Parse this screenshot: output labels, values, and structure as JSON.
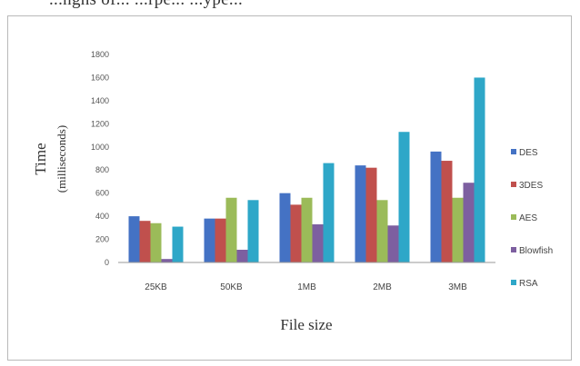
{
  "page": {
    "top_strip_text": "...nghs of... ...rpe... ...ype..."
  },
  "chart_data": {
    "type": "bar",
    "title": "",
    "xlabel": "File size",
    "ylabel": "Time",
    "ylabel_unit": "(milliseconds)",
    "categories": [
      "25KB",
      "50KB",
      "1MB",
      "2MB",
      "3MB"
    ],
    "ylim": [
      0,
      1800
    ],
    "yticks": [
      0,
      200,
      400,
      600,
      800,
      1000,
      1200,
      1400,
      1600,
      1800
    ],
    "grid": false,
    "legend_position": "right",
    "series": [
      {
        "name": "DES",
        "color": "#4472c4",
        "values": [
          400,
          380,
          600,
          840,
          960
        ]
      },
      {
        "name": "3DES",
        "color": "#c0504d",
        "values": [
          360,
          380,
          500,
          820,
          880
        ]
      },
      {
        "name": "AES",
        "color": "#9bbb59",
        "values": [
          340,
          560,
          560,
          540,
          560
        ]
      },
      {
        "name": "Blowfish",
        "color": "#7d5fa0",
        "values": [
          30,
          110,
          330,
          320,
          690
        ]
      },
      {
        "name": "RSA",
        "color": "#2ea7c8",
        "values": [
          310,
          540,
          860,
          1130,
          1600
        ]
      }
    ]
  }
}
